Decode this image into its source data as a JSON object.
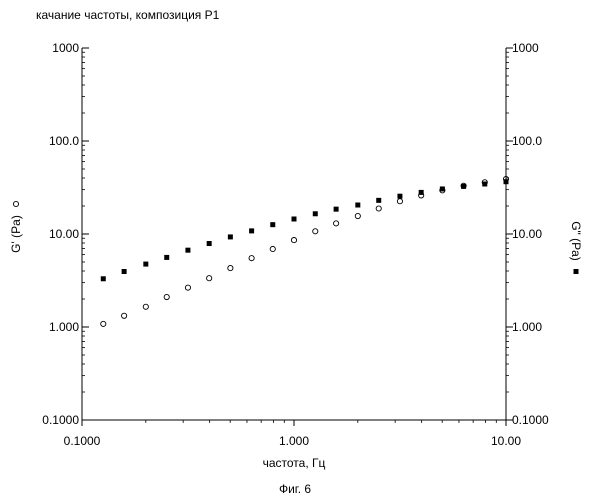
{
  "chart_data": {
    "type": "scatter",
    "title": "качание частоты, композиция P1",
    "xlabel": "частота, Гц",
    "ylabel_left": "G' (Pa)",
    "ylabel_right": "G\" (Pa)",
    "caption": "Фиг. 6",
    "x_scale": "log",
    "y_scale": "log",
    "xlim": [
      0.1,
      10
    ],
    "ylim": [
      0.1,
      1000
    ],
    "x_ticks": [
      "0.1000",
      "1.000",
      "10.00"
    ],
    "y_ticks_left": [
      "0.1000",
      "1.000",
      "10.00",
      "100.0",
      "1000"
    ],
    "y_ticks_right": [
      "0.1000",
      "1.000",
      "10.00",
      "100.0",
      "1000"
    ],
    "grid": false,
    "series": [
      {
        "name": "G'",
        "marker": "open-circle",
        "x": [
          0.126,
          0.158,
          0.2,
          0.251,
          0.316,
          0.398,
          0.501,
          0.631,
          0.794,
          1.0,
          1.26,
          1.58,
          2.0,
          2.51,
          3.16,
          3.98,
          5.01,
          6.31,
          7.94,
          10.0
        ],
        "y": [
          1.08,
          1.32,
          1.65,
          2.1,
          2.65,
          3.35,
          4.3,
          5.5,
          6.9,
          8.6,
          10.7,
          13.0,
          15.6,
          18.8,
          22.5,
          26.0,
          29.5,
          33.0,
          36.0,
          39.0
        ]
      },
      {
        "name": "G\"",
        "marker": "filled-square",
        "x": [
          0.126,
          0.158,
          0.2,
          0.251,
          0.316,
          0.398,
          0.501,
          0.631,
          0.794,
          1.0,
          1.26,
          1.58,
          2.0,
          2.51,
          3.16,
          3.98,
          5.01,
          6.31,
          7.94,
          10.0
        ],
        "y": [
          3.3,
          3.95,
          4.75,
          5.6,
          6.7,
          7.9,
          9.3,
          10.8,
          12.6,
          14.5,
          16.5,
          18.5,
          20.5,
          23.0,
          25.5,
          28.0,
          30.5,
          32.5,
          34.5,
          36.5
        ]
      }
    ]
  }
}
